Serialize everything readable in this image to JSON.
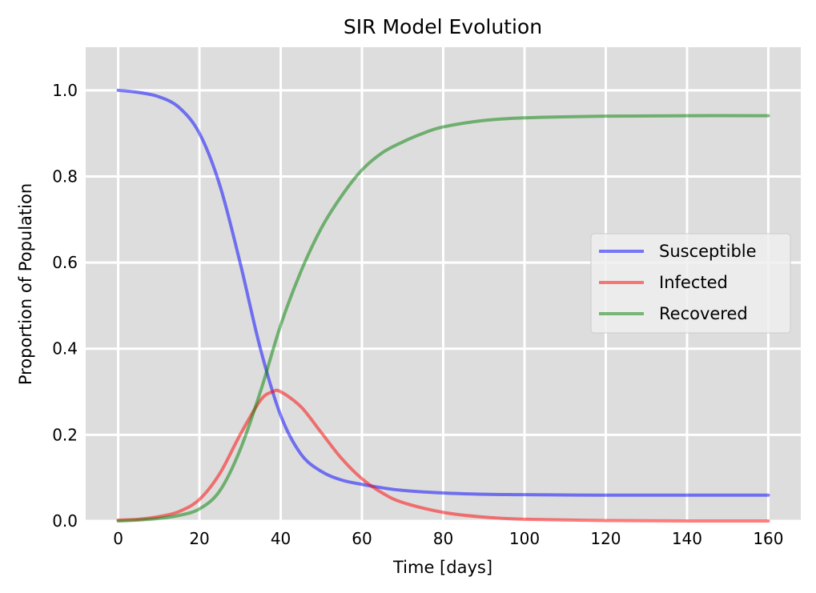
{
  "chart_data": {
    "type": "line",
    "title": "SIR Model Evolution",
    "xlabel": "Time [days]",
    "ylabel": "Proportion of Population",
    "xlim": [
      -8,
      168
    ],
    "ylim": [
      0,
      1.1
    ],
    "xticks": [
      0,
      20,
      40,
      60,
      80,
      100,
      120,
      140,
      160
    ],
    "yticks": [
      0.0,
      0.2,
      0.4,
      0.6,
      0.8,
      1.0
    ],
    "xtick_labels": [
      "0",
      "20",
      "40",
      "60",
      "80",
      "100",
      "120",
      "140",
      "160"
    ],
    "ytick_labels": [
      "0.0",
      "0.2",
      "0.4",
      "0.6",
      "0.8",
      "1.0"
    ],
    "grid": true,
    "legend_position": "center-right",
    "background_color": "#dddddd",
    "series": [
      {
        "name": "Susceptible",
        "color": "#0000ff",
        "x": [
          0,
          5,
          10,
          15,
          20,
          25,
          30,
          35,
          40,
          45,
          50,
          55,
          60,
          65,
          70,
          80,
          90,
          100,
          120,
          140,
          160
        ],
        "y": [
          1.0,
          0.995,
          0.985,
          0.96,
          0.9,
          0.78,
          0.6,
          0.4,
          0.245,
          0.155,
          0.115,
          0.095,
          0.085,
          0.077,
          0.071,
          0.065,
          0.062,
          0.061,
          0.06,
          0.06,
          0.06
        ]
      },
      {
        "name": "Infected",
        "color": "#ff0000",
        "x": [
          0,
          5,
          10,
          15,
          20,
          25,
          30,
          35,
          38,
          40,
          45,
          50,
          55,
          60,
          65,
          70,
          80,
          90,
          100,
          120,
          140,
          160
        ],
        "y": [
          0.002,
          0.004,
          0.01,
          0.022,
          0.05,
          0.11,
          0.2,
          0.28,
          0.3,
          0.3,
          0.265,
          0.205,
          0.145,
          0.098,
          0.065,
          0.043,
          0.02,
          0.009,
          0.004,
          0.001,
          0.0,
          0.0
        ]
      },
      {
        "name": "Recovered",
        "color": "#008000",
        "x": [
          0,
          5,
          10,
          15,
          20,
          25,
          30,
          35,
          40,
          45,
          50,
          55,
          60,
          65,
          70,
          75,
          80,
          90,
          100,
          120,
          140,
          160
        ],
        "y": [
          0.0,
          0.002,
          0.006,
          0.013,
          0.028,
          0.07,
          0.165,
          0.3,
          0.455,
          0.58,
          0.68,
          0.755,
          0.815,
          0.855,
          0.88,
          0.9,
          0.915,
          0.93,
          0.936,
          0.94,
          0.941,
          0.941
        ]
      }
    ]
  }
}
